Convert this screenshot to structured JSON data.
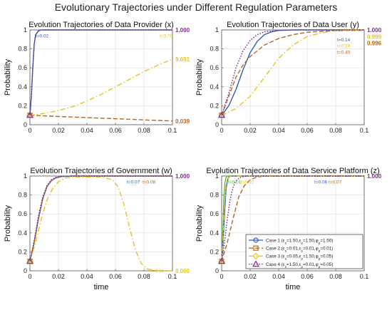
{
  "figure_title": "Evolutionary Trajectories under Different Regulation Parameters",
  "colors": {
    "case1": "#2f5fb3",
    "case2": "#b5651d",
    "case3": "#e8c21a",
    "case4": "#7b2d8e",
    "green": "#4caf2a",
    "axis": "#555555",
    "grid": "#e0e0e0"
  },
  "chart_data": [
    {
      "type": "line",
      "title": "Evolution Trajectories of Data Provider (x)",
      "xlabel": "",
      "ylabel": "Probability",
      "xlim": [
        0,
        0.1
      ],
      "ylim": [
        0,
        1
      ],
      "xticks": [
        "0",
        "0.02",
        "0.04",
        "0.06",
        "0.08",
        "0.1"
      ],
      "yticks": [
        "0",
        "0.2",
        "0.4",
        "0.6",
        "0.8",
        "1"
      ],
      "grid": true,
      "series": [
        {
          "case": "case1",
          "style": "solid",
          "x": [
            0,
            0.001,
            0.002,
            0.003,
            0.004,
            0.006,
            0.008,
            0.012,
            0.02,
            0.05,
            0.1
          ],
          "y": [
            0.1,
            0.3,
            0.6,
            0.85,
            0.95,
            0.99,
            1.0,
            1.0,
            1.0,
            1.0,
            1.0
          ]
        },
        {
          "case": "case2",
          "style": "dashed",
          "x": [
            0,
            0.02,
            0.04,
            0.06,
            0.08,
            0.1
          ],
          "y": [
            0.1,
            0.087,
            0.075,
            0.063,
            0.051,
            0.039
          ]
        },
        {
          "case": "case3",
          "style": "dashdot",
          "x": [
            0,
            0.01,
            0.02,
            0.03,
            0.04,
            0.05,
            0.06,
            0.07,
            0.08,
            0.09,
            0.1
          ],
          "y": [
            0.1,
            0.12,
            0.15,
            0.19,
            0.25,
            0.32,
            0.4,
            0.48,
            0.56,
            0.63,
            0.691
          ]
        },
        {
          "case": "case4",
          "style": "dotted",
          "x": [
            0,
            0.001,
            0.002,
            0.003,
            0.004,
            0.006,
            0.008,
            0.012,
            0.02,
            0.05,
            0.1
          ],
          "y": [
            0.1,
            0.3,
            0.6,
            0.85,
            0.95,
            0.99,
            1.0,
            1.0,
            1.0,
            1.0,
            1.0
          ]
        }
      ],
      "annotations": [
        {
          "text": "t=0.02",
          "x": 0.004,
          "y": 0.965,
          "color": "case1"
        },
        {
          "text": "t=0.76",
          "x": 0.091,
          "y": 0.965,
          "color": "case3"
        }
      ],
      "end_labels": [
        {
          "text": "1.000",
          "y": 1.0,
          "color": "case4"
        },
        {
          "text": "0.691",
          "y": 0.691,
          "color": "case3"
        },
        {
          "text": "0.039",
          "y": 0.039,
          "color": "case2"
        }
      ]
    },
    {
      "type": "line",
      "title": "Evolution Trajectories of Data User (y)",
      "xlabel": "",
      "ylabel": "Probability",
      "xlim": [
        0,
        0.1
      ],
      "ylim": [
        0,
        1
      ],
      "xticks": [
        "0",
        "0.02",
        "0.04",
        "0.06",
        "0.08",
        "0.1"
      ],
      "yticks": [
        "0",
        "0.2",
        "0.4",
        "0.6",
        "0.8",
        "1"
      ],
      "grid": true,
      "series": [
        {
          "case": "case1",
          "style": "solid",
          "x": [
            0,
            0.005,
            0.01,
            0.015,
            0.02,
            0.025,
            0.03,
            0.035,
            0.04,
            0.05,
            0.06,
            0.08,
            0.1
          ],
          "y": [
            0.1,
            0.2,
            0.37,
            0.58,
            0.76,
            0.88,
            0.95,
            0.98,
            0.995,
            1.0,
            1.0,
            1.0,
            1.0
          ]
        },
        {
          "case": "case2",
          "style": "dashed",
          "x": [
            0,
            0.005,
            0.01,
            0.015,
            0.02,
            0.03,
            0.04,
            0.05,
            0.06,
            0.07,
            0.08,
            0.1
          ],
          "y": [
            0.1,
            0.3,
            0.5,
            0.63,
            0.72,
            0.84,
            0.91,
            0.95,
            0.975,
            0.985,
            0.992,
            0.996
          ]
        },
        {
          "case": "case3",
          "style": "dashdot",
          "x": [
            0,
            0.01,
            0.02,
            0.03,
            0.04,
            0.05,
            0.06,
            0.07,
            0.08,
            0.09,
            0.1
          ],
          "y": [
            0.1,
            0.17,
            0.3,
            0.5,
            0.7,
            0.84,
            0.93,
            0.97,
            0.99,
            0.997,
            0.999
          ]
        },
        {
          "case": "case4",
          "style": "dotted",
          "x": [
            0,
            0.005,
            0.01,
            0.015,
            0.02,
            0.025,
            0.03,
            0.04,
            0.05,
            0.1
          ],
          "y": [
            0.1,
            0.33,
            0.6,
            0.78,
            0.89,
            0.95,
            0.98,
            0.995,
            1.0,
            1.0
          ]
        }
      ],
      "annotations": [
        {
          "text": "t=0.14",
          "x": 0.081,
          "y": 0.925,
          "color": "case1"
        },
        {
          "text": "t=0.19",
          "x": 0.081,
          "y": 0.86,
          "color": "case3"
        },
        {
          "text": "t=0.40",
          "x": 0.081,
          "y": 0.795,
          "color": "case2"
        }
      ],
      "end_labels": [
        {
          "text": "1.000",
          "y": 1.0,
          "color": "case4"
        },
        {
          "text": "0.999",
          "y": 0.93,
          "color": "case3"
        },
        {
          "text": "0.996",
          "y": 0.86,
          "color": "case2"
        }
      ]
    },
    {
      "type": "line",
      "title": "Evolution Trajectories of Government (w)",
      "xlabel": "",
      "ylabel": "Probability",
      "xlim": [
        0,
        0.1
      ],
      "ylim": [
        0,
        1
      ],
      "xticks": [
        "0",
        "0.02",
        "0.04",
        "0.06",
        "0.08",
        "0.1"
      ],
      "yticks": [
        "0",
        "0.2",
        "0.4",
        "0.6",
        "0.8",
        "1"
      ],
      "grid": true,
      "series": [
        {
          "case": "case1",
          "style": "solid",
          "x": [
            0,
            0.003,
            0.006,
            0.009,
            0.012,
            0.015,
            0.018,
            0.022,
            0.03,
            0.05,
            0.1
          ],
          "y": [
            0.1,
            0.3,
            0.55,
            0.76,
            0.89,
            0.95,
            0.98,
            0.995,
            1.0,
            1.0,
            1.0
          ]
        },
        {
          "case": "case2",
          "style": "dashed",
          "x": [
            0,
            0.003,
            0.006,
            0.009,
            0.012,
            0.015,
            0.018,
            0.022,
            0.03,
            0.05,
            0.1
          ],
          "y": [
            0.1,
            0.3,
            0.55,
            0.76,
            0.89,
            0.95,
            0.98,
            0.995,
            1.0,
            1.0,
            1.0
          ]
        },
        {
          "case": "case3",
          "style": "dashdot",
          "x": [
            0,
            0.004,
            0.008,
            0.012,
            0.016,
            0.02,
            0.025,
            0.03,
            0.05,
            0.058,
            0.062,
            0.066,
            0.07,
            0.074,
            0.078,
            0.082,
            0.088,
            0.1
          ],
          "y": [
            0.1,
            0.3,
            0.55,
            0.75,
            0.87,
            0.94,
            0.98,
            0.99,
            0.99,
            0.96,
            0.88,
            0.7,
            0.45,
            0.22,
            0.08,
            0.02,
            0.003,
            0.0
          ]
        },
        {
          "case": "case4",
          "style": "dotted",
          "x": [
            0,
            0.003,
            0.006,
            0.009,
            0.012,
            0.015,
            0.018,
            0.022,
            0.03,
            0.05,
            0.1
          ],
          "y": [
            0.1,
            0.32,
            0.58,
            0.78,
            0.9,
            0.96,
            0.985,
            0.997,
            1.0,
            1.0,
            1.0
          ]
        }
      ],
      "annotations": [
        {
          "text": "t=0.07",
          "x": 0.068,
          "y": 0.965,
          "color": "case1"
        },
        {
          "text": "t=0.08",
          "x": 0.079,
          "y": 0.965,
          "color": "case2"
        },
        {
          "text": "t=0.11",
          "x": 0.085,
          "y": 0.03,
          "color": "case3"
        }
      ],
      "end_labels": [
        {
          "text": "1.000",
          "y": 1.0,
          "color": "case4"
        },
        {
          "text": "0.000",
          "y": 0.0,
          "color": "case3"
        }
      ]
    },
    {
      "type": "line",
      "title": "Evolution Trajectories of Data Service Platform (z)",
      "xlabel": "time",
      "ylabel": "Probability",
      "xlim": [
        0,
        0.1
      ],
      "ylim": [
        0,
        1
      ],
      "xticks": [
        "0",
        "0.02",
        "0.04",
        "0.06",
        "0.08",
        "0.1"
      ],
      "yticks": [
        "0",
        "0.2",
        "0.4",
        "0.6",
        "0.8",
        "1"
      ],
      "grid": true,
      "series": [
        {
          "case": "case1",
          "style": "solid",
          "name": "Case 1 (εs=1.50,εp=1.50,φp=1.50)",
          "x": [
            0,
            0.001,
            0.002,
            0.003,
            0.004,
            0.005,
            0.007,
            0.01,
            0.1
          ],
          "y": [
            0.1,
            0.3,
            0.6,
            0.85,
            0.95,
            0.99,
            1.0,
            1.0,
            1.0
          ]
        },
        {
          "case": "case2",
          "style": "dashed",
          "name": "Case 2 (εs=0.01,εp=0.01,φp=0.01)",
          "x": [
            0,
            0.004,
            0.008,
            0.012,
            0.016,
            0.02,
            0.025,
            0.03,
            0.1
          ],
          "y": [
            0.1,
            0.3,
            0.55,
            0.78,
            0.9,
            0.96,
            0.99,
            1.0,
            1.0
          ]
        },
        {
          "case": "case3",
          "style": "dashdot",
          "name": "Case 3 (εs=0.05,εp=1.50,φp=0.05)",
          "x": [
            0,
            0.001,
            0.002,
            0.003,
            0.004,
            0.006,
            0.008,
            0.1
          ],
          "y": [
            0.1,
            0.35,
            0.7,
            0.9,
            0.97,
            0.995,
            1.0,
            1.0
          ]
        },
        {
          "case": "case4",
          "style": "dotted",
          "name": "Case 4 (εs=1.50,εp=0.01,φp=0.05)",
          "x": [
            0,
            0.002,
            0.004,
            0.006,
            0.008,
            0.01,
            0.013,
            0.016,
            0.02,
            0.1
          ],
          "y": [
            0.1,
            0.3,
            0.55,
            0.76,
            0.88,
            0.95,
            0.985,
            0.997,
            1.0,
            1.0
          ]
        }
      ],
      "green_line": {
        "x": [
          0,
          0.0008,
          0.0015,
          0.0022,
          0.003,
          0.004,
          0.1
        ],
        "y": [
          0.1,
          0.4,
          0.75,
          0.92,
          0.98,
          1.0,
          1.0
        ]
      },
      "annotations": [
        {
          "text": "t=0.01",
          "x": 0.0045,
          "y": 0.965,
          "color": "green"
        },
        {
          "text": "t=0.02",
          "x": 0.0135,
          "y": 0.965,
          "color": "case3"
        },
        {
          "text": "t=0.06",
          "x": 0.065,
          "y": 0.965,
          "color": "case1"
        },
        {
          "text": "t=0.07",
          "x": 0.075,
          "y": 0.965,
          "color": "case2"
        }
      ],
      "end_labels": [
        {
          "text": "1.000",
          "y": 1.0,
          "color": "case4"
        }
      ],
      "legend": {
        "placement": "bottom-right",
        "entries": [
          {
            "case": "case1",
            "style": "solid",
            "marker": "circle",
            "label": "Case 1 (ε_s=1.50,ε_p=1.50,φ_p=1.50)"
          },
          {
            "case": "case2",
            "style": "dashed",
            "marker": "square",
            "label": "Case 2 (ε_s=0.01,ε_p=0.01,φ_p=0.01)"
          },
          {
            "case": "case3",
            "style": "dashdot",
            "marker": "diamond",
            "label": "Case 3 (ε_s=0.05,ε_p=1.50,φ_p=0.05)"
          },
          {
            "case": "case4",
            "style": "dotted",
            "marker": "triangle",
            "label": "Case 4 (ε_s=1.50,ε_p=0.01,φ_p=0.05)"
          }
        ]
      }
    }
  ]
}
